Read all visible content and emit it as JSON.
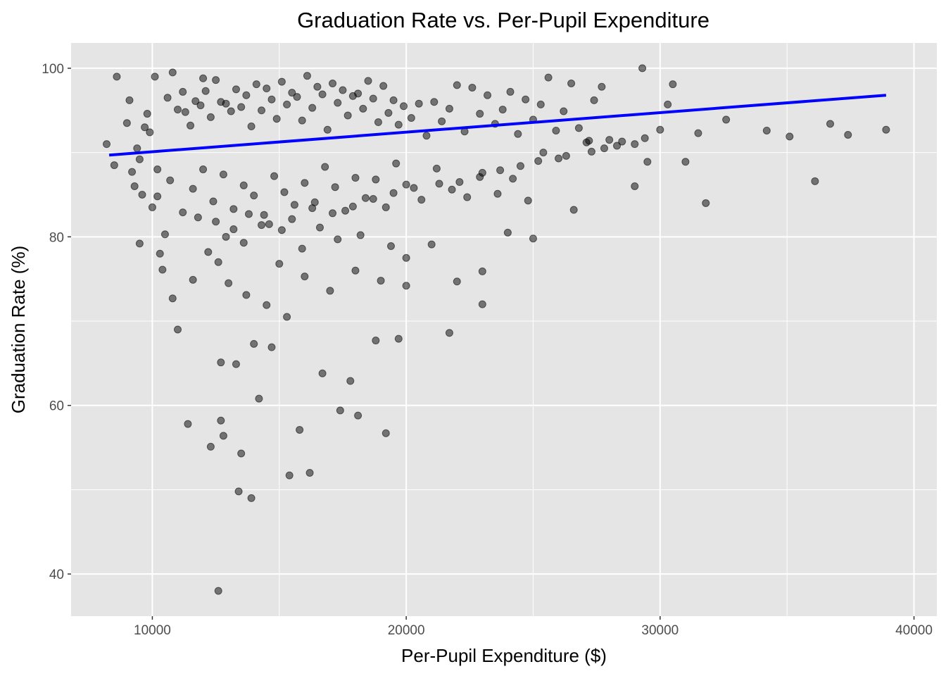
{
  "chart_data": {
    "type": "scatter",
    "title": "Graduation Rate vs. Per-Pupil Expenditure",
    "xlabel": "Per-Pupil Expenditure ($)",
    "ylabel": "Graduation Rate (%)",
    "xlim": [
      6800,
      40900
    ],
    "ylim": [
      35,
      103
    ],
    "x_ticks": [
      10000,
      20000,
      30000,
      40000
    ],
    "x_tick_labels": [
      "10000",
      "20000",
      "30000",
      "40000"
    ],
    "y_ticks": [
      40,
      60,
      80,
      100
    ],
    "y_tick_labels": [
      "40",
      "60",
      "80",
      "100"
    ],
    "grid": true,
    "colors": {
      "panel_background": "#e5e5e5",
      "grid": "#ffffff",
      "points": "#000000",
      "trend_line": "#0000ff"
    },
    "trend_line": {
      "type": "linear",
      "x": [
        8300,
        38900
      ],
      "y": [
        89.7,
        96.8
      ]
    },
    "points_x": [
      8200,
      8500,
      8600,
      9000,
      9100,
      9200,
      9300,
      9400,
      9500,
      9600,
      9700,
      9800,
      9900,
      10000,
      10100,
      10200,
      10300,
      10500,
      10600,
      10800,
      11000,
      11200,
      11300,
      11500,
      11700,
      11900,
      12000,
      12100,
      12300,
      12500,
      12700,
      12900,
      13100,
      13300,
      13500,
      13700,
      13900,
      14100,
      14300,
      14500,
      14700,
      14900,
      15100,
      15300,
      15500,
      15700,
      15900,
      16100,
      16300,
      16500,
      16700,
      16900,
      17100,
      17300,
      17500,
      17700,
      17900,
      18100,
      18300,
      18500,
      18700,
      18900,
      19100,
      19300,
      19500,
      19700,
      19900,
      20200,
      20500,
      20800,
      21100,
      21400,
      21700,
      22000,
      22300,
      22600,
      22900,
      23200,
      23500,
      23800,
      24100,
      24400,
      24700,
      25000,
      25300,
      25600,
      25900,
      26200,
      26500,
      26800,
      27100,
      27400,
      27700,
      28000,
      28500,
      29000,
      29500,
      30000,
      30500,
      31000,
      31500,
      32600,
      34200,
      35100,
      36100,
      36700,
      37400,
      38900,
      10200,
      10700,
      11200,
      11600,
      12000,
      12400,
      12800,
      13200,
      13600,
      14000,
      14400,
      14800,
      15200,
      15600,
      16000,
      16400,
      16800,
      17200,
      17600,
      18000,
      18400,
      18800,
      19200,
      19600,
      20000,
      20600,
      21200,
      21800,
      22400,
      23000,
      23600,
      24200,
      24800,
      25400,
      26000,
      26600,
      27200,
      27800,
      29000,
      29300,
      30300,
      31800,
      12600,
      13400,
      13900,
      12800,
      12700,
      11400,
      12300,
      13500,
      14200,
      15400,
      15800,
      16200,
      19200,
      17400,
      18100,
      17800,
      16700,
      13300,
      12700,
      14000,
      21700,
      23000,
      20000,
      19700,
      18800,
      15300,
      14700,
      11000,
      11600,
      10800,
      10400,
      9500,
      12600,
      13000,
      13700,
      14500,
      15000,
      16000,
      17000,
      18000,
      19000,
      20000,
      21000,
      22000,
      23000,
      24000,
      25000,
      12200,
      12900,
      13600,
      14300,
      15100,
      15900,
      16600,
      17300,
      18200,
      19400,
      11800,
      12500,
      13200,
      13800,
      14600,
      15500,
      16300,
      17100,
      17900,
      18700,
      19500,
      20300,
      21300,
      22100,
      22900,
      23700,
      24500,
      25200,
      26300,
      27300,
      28300,
      29400
    ],
    "points_y": [
      91.0,
      88.5,
      99.0,
      93.5,
      96.2,
      87.7,
      86.0,
      90.5,
      89.2,
      85.0,
      93.0,
      94.6,
      92.4,
      83.5,
      99.0,
      88.0,
      78.0,
      80.3,
      96.5,
      99.5,
      95.1,
      97.2,
      94.8,
      93.2,
      96.1,
      95.6,
      98.8,
      97.3,
      94.2,
      98.6,
      96.0,
      95.8,
      94.9,
      97.5,
      95.4,
      96.8,
      93.1,
      98.1,
      95.0,
      97.6,
      96.3,
      94.0,
      98.4,
      95.7,
      97.1,
      96.6,
      93.8,
      99.1,
      95.3,
      97.8,
      96.9,
      92.7,
      98.2,
      95.9,
      97.4,
      94.4,
      96.7,
      97.0,
      95.2,
      98.5,
      96.4,
      93.6,
      97.9,
      94.7,
      96.2,
      93.3,
      95.5,
      94.1,
      95.8,
      92.0,
      96.0,
      93.7,
      95.2,
      98.0,
      92.5,
      97.7,
      94.6,
      96.8,
      93.4,
      95.1,
      97.2,
      92.2,
      96.3,
      93.9,
      95.7,
      98.9,
      92.6,
      94.9,
      98.2,
      92.9,
      91.2,
      96.2,
      97.8,
      91.5,
      91.3,
      91.0,
      88.9,
      92.7,
      98.1,
      88.9,
      92.3,
      93.9,
      92.6,
      91.9,
      86.6,
      93.4,
      92.1,
      92.7,
      84.8,
      86.7,
      82.9,
      85.7,
      88.0,
      84.2,
      87.4,
      83.3,
      86.1,
      84.9,
      82.6,
      87.2,
      85.3,
      83.8,
      86.4,
      84.1,
      88.3,
      85.9,
      83.1,
      87.0,
      84.6,
      86.8,
      83.5,
      88.7,
      86.2,
      84.4,
      88.1,
      85.6,
      84.7,
      87.6,
      85.1,
      86.9,
      84.3,
      90.0,
      89.3,
      83.2,
      91.4,
      90.5,
      86.0,
      100.0,
      95.7,
      84.0,
      38.0,
      49.8,
      49.0,
      56.4,
      58.2,
      57.8,
      55.1,
      54.3,
      60.8,
      51.7,
      57.1,
      52.0,
      56.7,
      59.4,
      58.8,
      62.9,
      63.8,
      64.9,
      65.1,
      67.3,
      68.6,
      72.0,
      74.2,
      67.9,
      67.7,
      70.5,
      66.9,
      69.0,
      74.9,
      72.7,
      76.1,
      79.2,
      77.0,
      74.5,
      73.1,
      71.9,
      76.8,
      75.3,
      73.6,
      76.0,
      74.8,
      77.5,
      79.1,
      74.7,
      75.9,
      80.5,
      79.8,
      78.2,
      80.0,
      79.3,
      81.4,
      80.8,
      78.6,
      81.1,
      79.7,
      80.2,
      78.9,
      82.3,
      81.8,
      80.9,
      82.7,
      81.5,
      82.1,
      83.4,
      82.8,
      83.6,
      84.5,
      85.2,
      85.8,
      86.3,
      86.5,
      87.1,
      87.9,
      88.4,
      89.0,
      89.6,
      90.1,
      90.8,
      91.7,
      92.8
    ]
  }
}
